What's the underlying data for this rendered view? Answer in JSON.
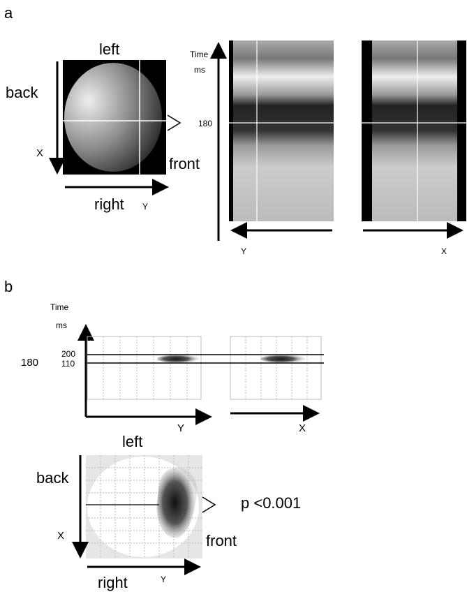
{
  "panel_a": {
    "label": "a",
    "head": {
      "top": "left",
      "side": "back",
      "x_axis": "X",
      "bottom_side": "front",
      "bottom": "right",
      "y_axis": "Y"
    },
    "time": {
      "title": "Time",
      "unit": "ms",
      "tick": 180
    },
    "map_y_axis": "Y",
    "map_x_axis": "X"
  },
  "panel_b": {
    "label": "b",
    "time": {
      "title": "Time",
      "unit": "ms",
      "tick": 180,
      "upper": 200,
      "lower": 110
    },
    "map_y_axis": "Y",
    "map_x_axis": "X",
    "head": {
      "top": "left",
      "side": "back",
      "x_axis": "X",
      "bottom_side": "front",
      "bottom": "right",
      "y_axis": "Y"
    },
    "significance": "p <0.001"
  }
}
